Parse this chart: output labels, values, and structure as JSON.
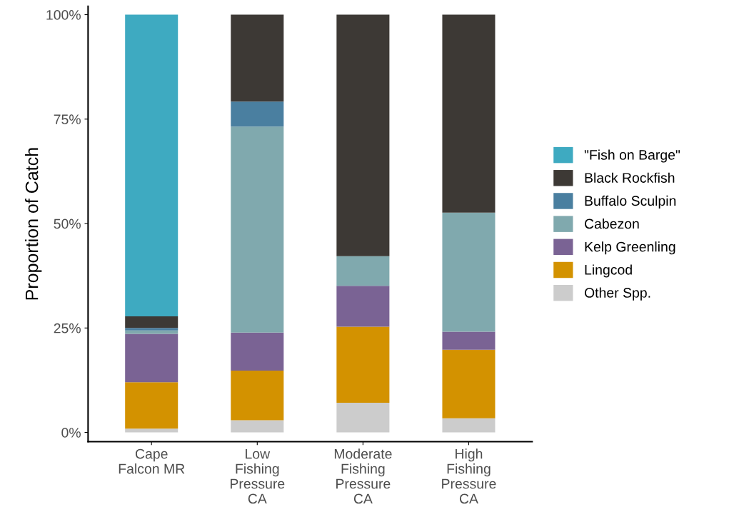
{
  "chart_data": {
    "type": "bar",
    "stacked": true,
    "ylabel": "Proportion of Catch",
    "categories": [
      "Cape\nFalcon MR",
      "Low\nFishing\nPressure\nCA",
      "Moderate\nFishing\nPressure\nCA",
      "High\nFishing\nPressure\nCA"
    ],
    "series": [
      {
        "name": "Other Spp.",
        "color": "#cccccc",
        "values": [
          0.9,
          2.9,
          7.1,
          3.4
        ]
      },
      {
        "name": "Lingcod",
        "color": "#d39200",
        "values": [
          11.1,
          11.9,
          18.2,
          16.4
        ]
      },
      {
        "name": "Kelp Greenling",
        "color": "#7a6394",
        "values": [
          11.6,
          9.1,
          9.8,
          4.3
        ]
      },
      {
        "name": "Cabezon",
        "color": "#80a9ae",
        "values": [
          0.8,
          49.3,
          7.1,
          28.5
        ]
      },
      {
        "name": "Buffalo Sculpin",
        "color": "#4a7fa0",
        "values": [
          0.6,
          6.0,
          0,
          0
        ]
      },
      {
        "name": "Black Rockfish",
        "color": "#3d3935",
        "values": [
          2.8,
          20.8,
          57.8,
          47.4
        ]
      },
      {
        "name": "\"Fish on Barge\"",
        "color": "#3eaac1",
        "values": [
          72.2,
          0,
          0,
          0
        ]
      }
    ],
    "ylim": [
      -2.2,
      102
    ],
    "yticks": [
      {
        "value": 0,
        "label": "0%"
      },
      {
        "value": 25,
        "label": "25%"
      },
      {
        "value": 50,
        "label": "50%"
      },
      {
        "value": 75,
        "label": "75%"
      },
      {
        "value": 100,
        "label": "100%"
      }
    ],
    "grid": false,
    "legend": "right"
  }
}
